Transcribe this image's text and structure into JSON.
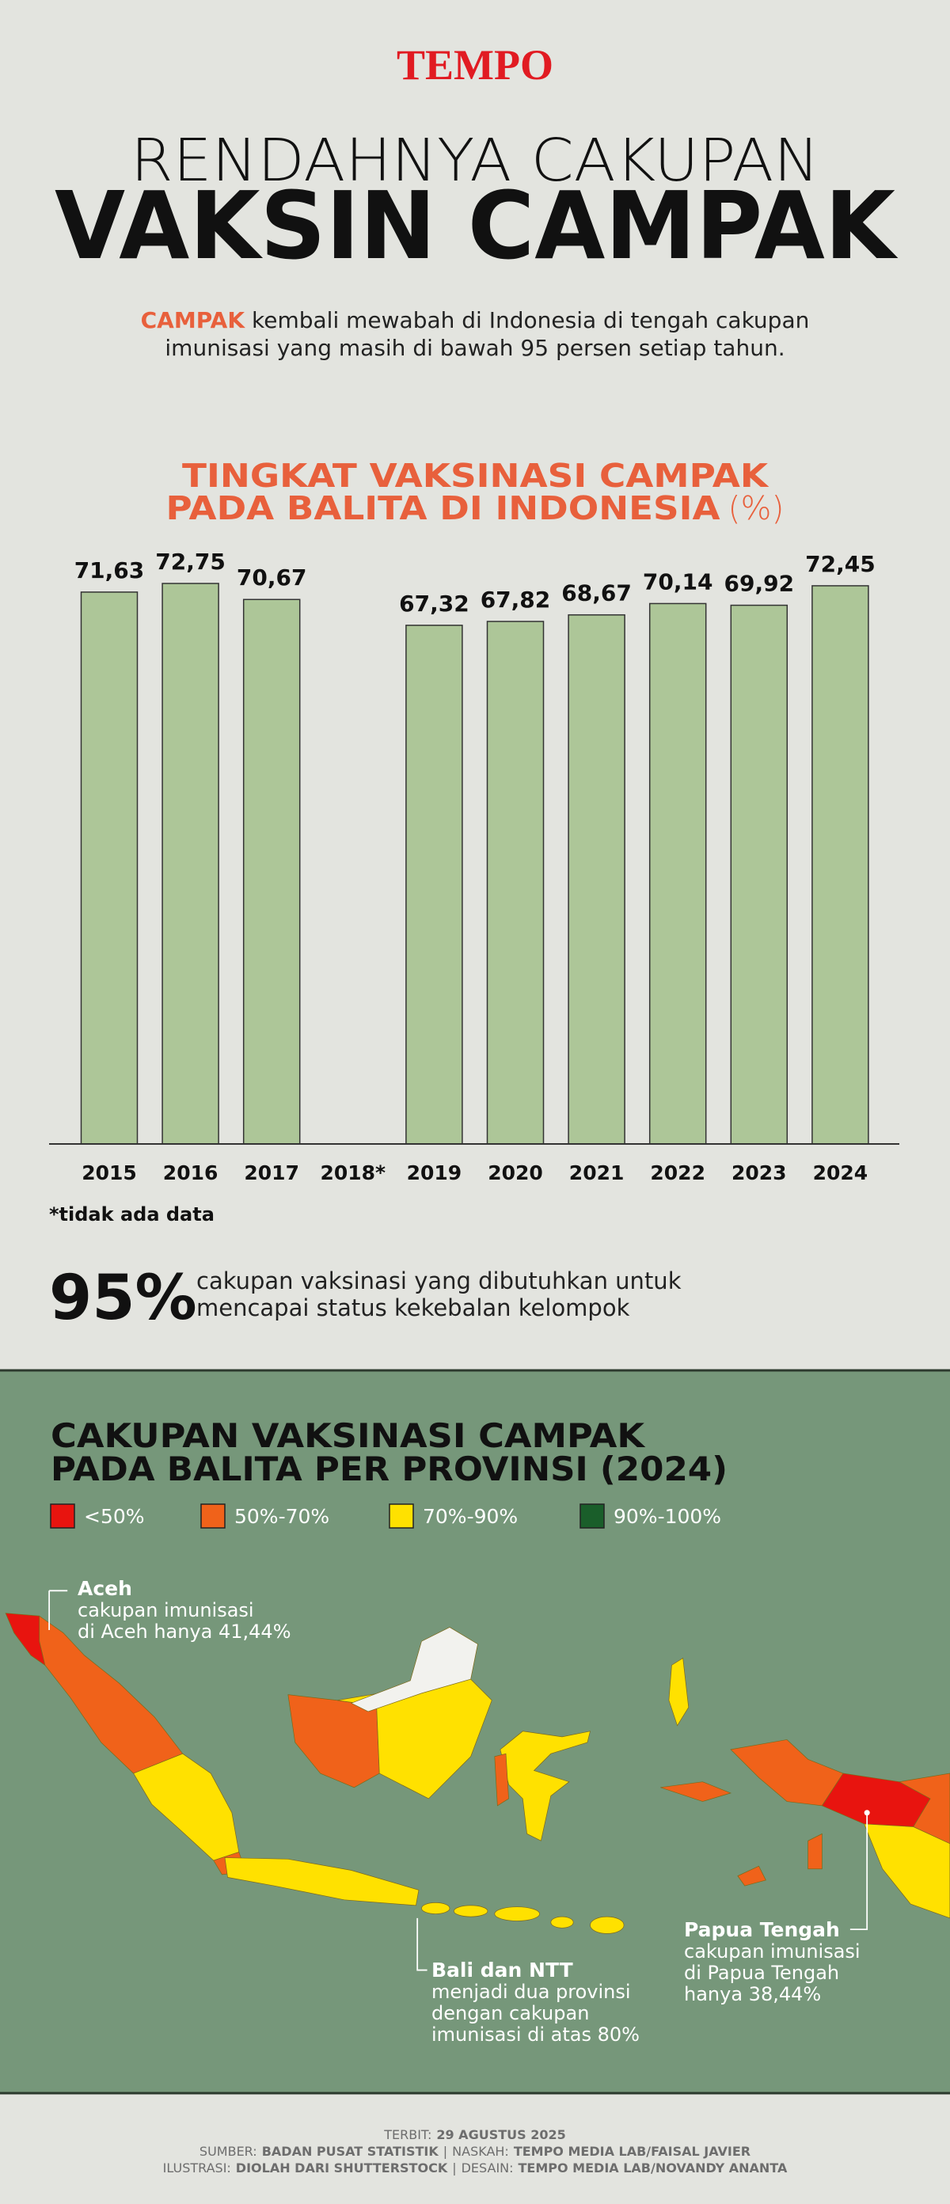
{
  "header": {
    "logo": "TEMPO",
    "title_line1": "RENDAHNYA CAKUPAN",
    "title_line2": "VAKSIN CAMPAK",
    "subtitle": {
      "highlight": "CAMPAK",
      "line1": "kembali mewabah di Indonesia di tengah cakupan",
      "line2": "imunisasi yang masih di bawah 95 persen setiap tahun."
    }
  },
  "chart_data": {
    "type": "bar",
    "title": [
      "TINGKAT VAKSINASI CAMPAK",
      "PADA BALITA DI INDONESIA"
    ],
    "unit": "(%)",
    "categories": [
      "2015",
      "2016",
      "2017",
      "2018*",
      "2019",
      "2020",
      "2021",
      "2022",
      "2023",
      "2024"
    ],
    "values": [
      71.63,
      72.75,
      70.67,
      null,
      67.32,
      67.82,
      68.67,
      70.14,
      69.92,
      72.45
    ],
    "value_labels": [
      "71,63",
      "72,75",
      "70,67",
      null,
      "67,32",
      "67,82",
      "68,67",
      "70,14",
      "69,92",
      "72,45"
    ],
    "color": "#adc698",
    "note": "*tidak ada data"
  },
  "stat": {
    "figure": "95%",
    "text_line1": "cakupan vaksinasi yang dibutuhkan untuk",
    "text_line2": "mencapai status kekebalan kelompok"
  },
  "map": {
    "title": [
      "CAKUPAN VAKSINASI CAMPAK",
      "PADA BALITA PER PROVINSI (2024)"
    ],
    "legend": [
      {
        "label": "<50%",
        "color": "#e8140f"
      },
      {
        "label": "50%-70%",
        "color": "#f0621a"
      },
      {
        "label": "70%-90%",
        "color": "#ffe100"
      },
      {
        "label": "90%-100%",
        "color": "#1a5e2a"
      }
    ],
    "annotations": [
      {
        "heading": "Aceh",
        "lines": [
          "cakupan imunisasi",
          "di Aceh hanya 41,44%"
        ]
      },
      {
        "heading": "Bali dan NTT",
        "lines": [
          "menjadi dua provinsi",
          "dengan cakupan",
          "imunisasi di atas 80%"
        ]
      },
      {
        "heading": "Papua Tengah",
        "lines": [
          "cakupan imunisasi",
          "di Papua Tengah",
          "hanya 38,44%"
        ]
      }
    ]
  },
  "footer": {
    "lines": [
      [
        {
          "text": "TERBIT:"
        },
        {
          "text": "29 AGUSTUS 2025",
          "bold": true
        }
      ],
      [
        {
          "text": "SUMBER:"
        },
        {
          "text": "BADAN PUSAT STATISTIK",
          "bold": true
        },
        {
          "text": "|"
        },
        {
          "text": "NASKAH:"
        },
        {
          "text": "TEMPO MEDIA LAB/FAISAL JAVIER",
          "bold": true
        }
      ],
      [
        {
          "text": "ILUSTRASI:"
        },
        {
          "text": "DIOLAH DARI SHUTTERSTOCK",
          "bold": true
        },
        {
          "text": "|"
        },
        {
          "text": "DESAIN:"
        },
        {
          "text": "TEMPO MEDIA LAB/NOVANDY ANANTA",
          "bold": true
        }
      ]
    ]
  }
}
